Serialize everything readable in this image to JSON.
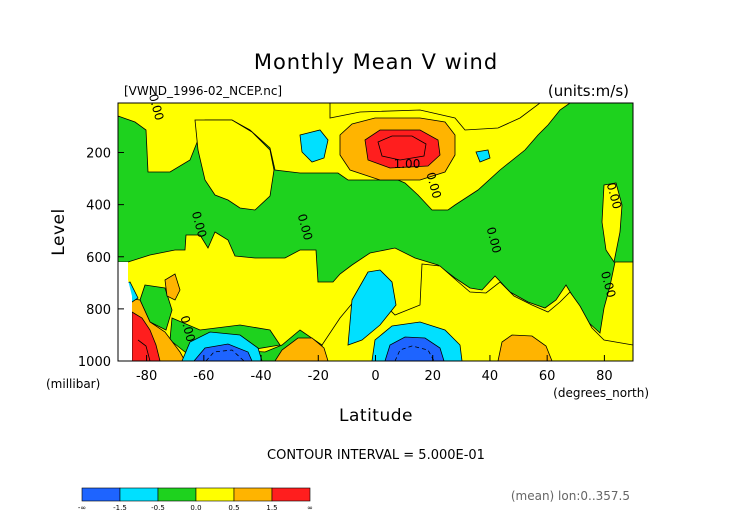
{
  "chart_data": {
    "type": "heatmap",
    "title": "Monthly Mean V wind",
    "file_label": "[VWND_1996-02_NCEP.nc]",
    "units_label": "(units:m/s)",
    "xlabel": "Latitude",
    "x_units": "(degrees_north)",
    "ylabel": "Level",
    "y_units": "(millibar)",
    "xlim": [
      -90,
      90
    ],
    "ylim": [
      1000,
      10
    ],
    "x_ticks": [
      -80,
      -60,
      -40,
      -20,
      0,
      20,
      40,
      60,
      80
    ],
    "y_ticks": [
      200,
      400,
      600,
      800,
      1000
    ],
    "contour_interval_label": "CONTOUR INTERVAL = 5.000E-01",
    "mean_label": "(mean) lon:0..357.5",
    "contour_labels": [
      {
        "text": "0.00",
        "lat": -78,
        "lev": 30
      },
      {
        "text": "0.00",
        "lat": -63,
        "lev": 480
      },
      {
        "text": "0.00",
        "lat": -26,
        "lev": 490
      },
      {
        "text": "1.00",
        "lat": 11,
        "lev": 260
      },
      {
        "text": "0.00",
        "lat": 19,
        "lev": 330
      },
      {
        "text": "0.00",
        "lat": 40,
        "lev": 540
      },
      {
        "text": "0.00",
        "lat": 82,
        "lev": 370
      },
      {
        "text": "0.00",
        "lat": 80,
        "lev": 710
      },
      {
        "text": "0.00",
        "lat": -67,
        "lev": 880
      }
    ],
    "colorbar": {
      "colors": [
        "#1e64ff",
        "#00e0ff",
        "#1ed21e",
        "#ffff00",
        "#ffb400",
        "#ff1e1e"
      ],
      "labels": [
        "-∞",
        "-1.5",
        "-0.5",
        "0.0",
        "0.5",
        "1.5",
        "∞"
      ]
    }
  }
}
